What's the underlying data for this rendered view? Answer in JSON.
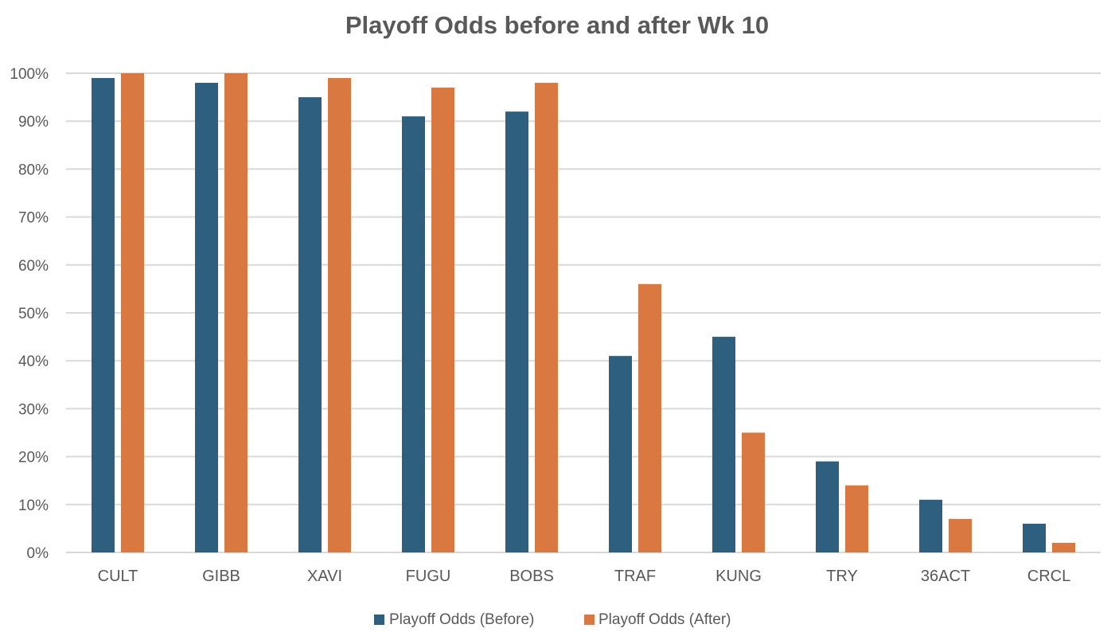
{
  "chart_data": {
    "type": "bar",
    "title": "Playoff Odds before and after Wk 10",
    "xlabel": "",
    "ylabel": "",
    "categories": [
      "CULT",
      "GIBB",
      "XAVI",
      "FUGU",
      "BOBS",
      "TRAF",
      "KUNG",
      "TRY",
      "36ACT",
      "CRCL"
    ],
    "series": [
      {
        "name": "Playoff Odds (Before)",
        "color": "#2e5f7f",
        "values": [
          99,
          98,
          95,
          91,
          92,
          41,
          45,
          19,
          11,
          6
        ]
      },
      {
        "name": "Playoff Odds (After)",
        "color": "#d97941",
        "values": [
          100,
          100,
          99,
          97,
          98,
          56,
          25,
          14,
          7,
          2
        ]
      }
    ],
    "ylim": [
      0,
      100
    ],
    "yticks": [
      0,
      10,
      20,
      30,
      40,
      50,
      60,
      70,
      80,
      90,
      100
    ],
    "ytick_labels": [
      "0%",
      "10%",
      "20%",
      "30%",
      "40%",
      "50%",
      "60%",
      "70%",
      "80%",
      "90%",
      "100%"
    ],
    "grid": true,
    "legend_position": "bottom"
  }
}
